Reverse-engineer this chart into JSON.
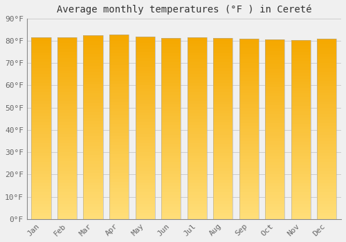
{
  "title": "Average monthly temperatures (°F ) in Cereté",
  "months": [
    "Jan",
    "Feb",
    "Mar",
    "Apr",
    "May",
    "Jun",
    "Jul",
    "Aug",
    "Sep",
    "Oct",
    "Nov",
    "Dec"
  ],
  "values": [
    81.5,
    81.7,
    82.4,
    82.8,
    81.8,
    81.3,
    81.5,
    81.3,
    81.0,
    80.6,
    80.4,
    81.0
  ],
  "bar_color_top": "#F5A800",
  "bar_color_bottom": "#FFD878",
  "bar_edge_color": "#BBBBBB",
  "background_color": "#F0F0F0",
  "ylim": [
    0,
    90
  ],
  "ytick_step": 10,
  "title_fontsize": 10,
  "tick_fontsize": 8,
  "grid_color": "#CCCCCC",
  "bar_width": 0.75,
  "n_grad": 60
}
